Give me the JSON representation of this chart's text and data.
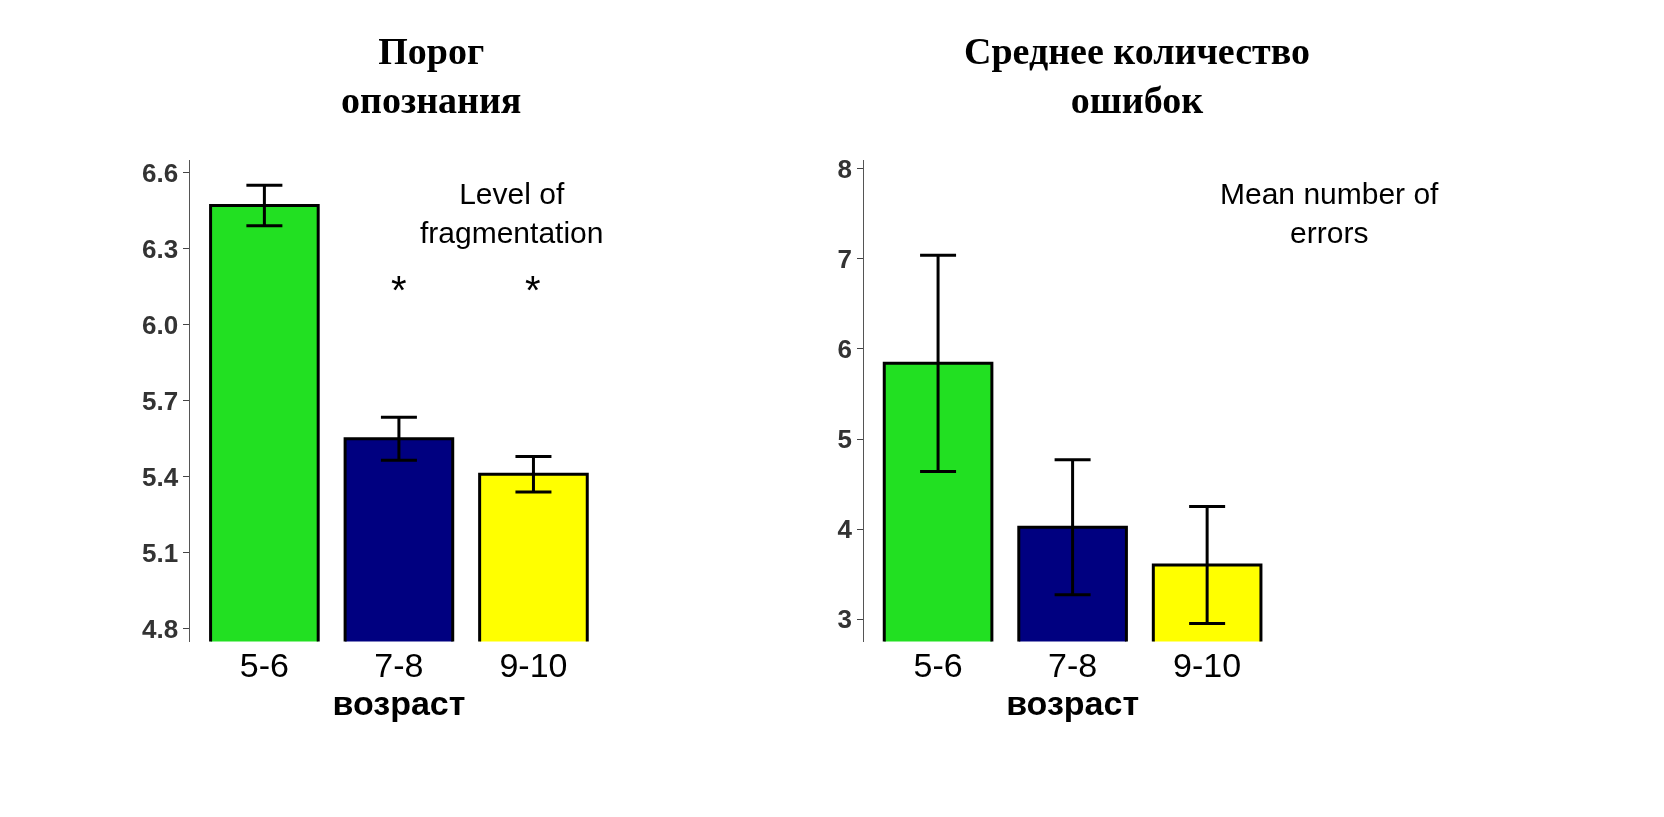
{
  "chart_data": [
    {
      "type": "bar",
      "title": "Порог опознания",
      "xlabel": "возраст",
      "categories": [
        "5-6",
        "7-8",
        "9-10"
      ],
      "values": [
        6.47,
        5.55,
        5.41
      ],
      "errors": [
        0.08,
        0.085,
        0.07
      ],
      "colors": [
        "#22e022",
        "#000080",
        "#ffff00"
      ],
      "ylim": [
        4.75,
        6.65
      ],
      "yticks": [
        {
          "value": 4.8,
          "label": "4.8"
        },
        {
          "value": 5.1,
          "label": "5.1"
        },
        {
          "value": 5.4,
          "label": "5.4"
        },
        {
          "value": 5.7,
          "label": "5.7"
        },
        {
          "value": 6.0,
          "label": "6.0"
        },
        {
          "value": 6.3,
          "label": "6.3"
        },
        {
          "value": 6.6,
          "label": "6.6"
        }
      ],
      "annotations": [
        "Level of fragmentation",
        "*",
        "*"
      ]
    },
    {
      "type": "bar",
      "title": "Среднее количество ошибок",
      "xlabel": "возраст",
      "categories": [
        "5-6",
        "7-8",
        "9-10"
      ],
      "values": [
        5.84,
        4.02,
        3.6
      ],
      "errors": [
        1.2,
        0.75,
        0.65
      ],
      "colors": [
        "#22e022",
        "#000080",
        "#ffff00"
      ],
      "ylim": [
        2.75,
        8.1
      ],
      "yticks": [
        3,
        4,
        5,
        6,
        7,
        8
      ],
      "annotations": [
        "Mean number of errors"
      ]
    }
  ]
}
